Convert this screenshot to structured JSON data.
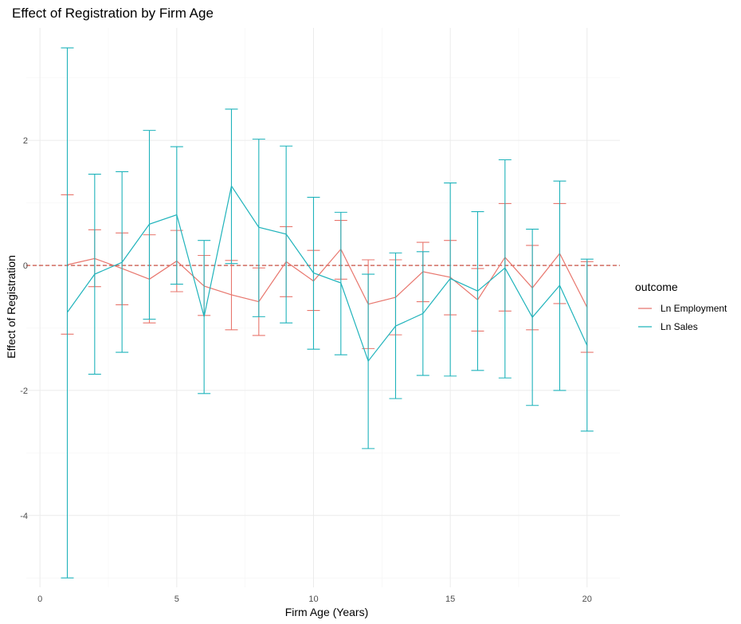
{
  "chart_data": {
    "type": "line",
    "title": "Effect of Registration by Firm Age",
    "xlabel": "Firm Age (Years)",
    "ylabel": "Effect of Registration",
    "xlim": [
      -0.5,
      21.2
    ],
    "ylim": [
      -5.15,
      3.8
    ],
    "x_ticks": [
      0,
      5,
      10,
      15,
      20
    ],
    "y_ticks": [
      -4,
      -2,
      0,
      2
    ],
    "grid": true,
    "reference_line": {
      "y": 0,
      "style": "dashed",
      "color": "#c0392b"
    },
    "legend": {
      "title": "outcome",
      "position": "right"
    },
    "x": [
      1,
      2,
      3,
      4,
      5,
      6,
      7,
      8,
      9,
      10,
      11,
      12,
      13,
      14,
      15,
      16,
      17,
      18,
      19,
      20
    ],
    "series": [
      {
        "name": "Ln Employment",
        "color": "#E8766D",
        "values": [
          0.01,
          0.11,
          -0.05,
          -0.22,
          0.07,
          -0.33,
          -0.47,
          -0.58,
          0.06,
          -0.25,
          0.26,
          -0.62,
          -0.51,
          -0.1,
          -0.19,
          -0.55,
          0.13,
          -0.36,
          0.19,
          -0.67
        ],
        "lower": [
          -1.1,
          -0.34,
          -0.63,
          -0.92,
          -0.42,
          -0.8,
          -1.03,
          -1.12,
          -0.5,
          -0.72,
          -0.22,
          -1.33,
          -1.11,
          -0.58,
          -0.79,
          -1.05,
          -0.73,
          -1.03,
          -0.61,
          -1.39
        ],
        "upper": [
          1.13,
          0.57,
          0.52,
          0.49,
          0.56,
          0.16,
          0.08,
          -0.04,
          0.62,
          0.24,
          0.72,
          0.09,
          0.09,
          0.37,
          0.4,
          -0.05,
          0.99,
          0.32,
          0.99,
          0.06
        ]
      },
      {
        "name": "Ln Sales",
        "color": "#1FB3BB",
        "values": [
          -0.75,
          -0.14,
          0.05,
          0.66,
          0.81,
          -0.82,
          1.27,
          0.61,
          0.5,
          -0.12,
          -0.28,
          -1.53,
          -0.97,
          -0.77,
          -0.21,
          -0.41,
          -0.04,
          -0.83,
          -0.32,
          -1.28
        ],
        "lower": [
          -5.0,
          -1.74,
          -1.39,
          -0.86,
          -0.3,
          -2.05,
          0.03,
          -0.82,
          -0.92,
          -1.34,
          -1.43,
          -2.93,
          -2.13,
          -1.76,
          -1.77,
          -1.68,
          -1.8,
          -2.24,
          -2.0,
          -2.65
        ],
        "upper": [
          3.48,
          1.46,
          1.5,
          2.16,
          1.9,
          0.4,
          2.5,
          2.02,
          1.91,
          1.09,
          0.85,
          -0.14,
          0.2,
          0.22,
          1.32,
          0.86,
          1.69,
          0.58,
          1.35,
          0.1
        ]
      }
    ]
  }
}
